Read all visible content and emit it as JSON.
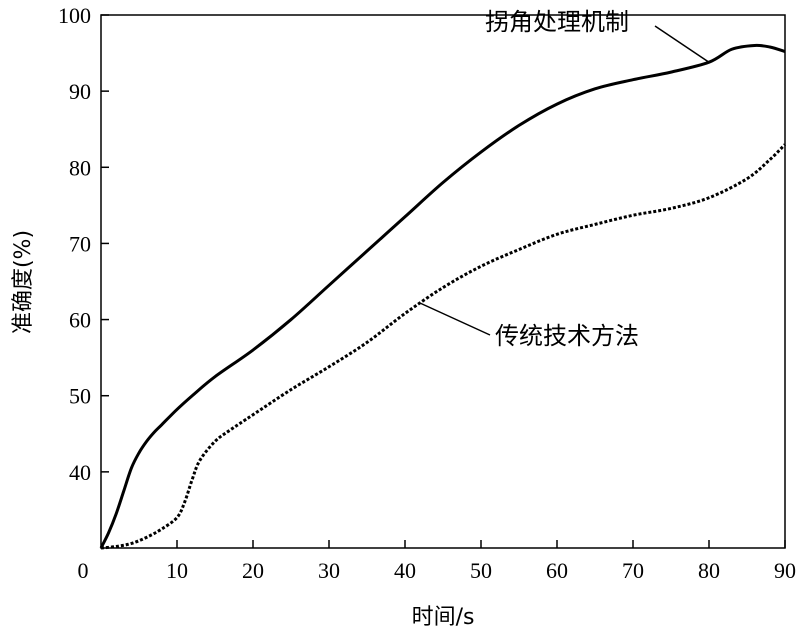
{
  "chart_data": {
    "type": "line",
    "xlabel": "时间/s",
    "ylabel": "准确度(%)",
    "xlim": [
      0,
      90
    ],
    "ylim": [
      30,
      100
    ],
    "origin_label": "0",
    "xticks": [
      10,
      20,
      30,
      40,
      50,
      60,
      70,
      80,
      90
    ],
    "yticks": [
      40,
      50,
      60,
      70,
      80,
      90,
      100
    ],
    "grid": false,
    "legend": "none",
    "series": [
      {
        "name": "拐角处理机制",
        "style": "solid",
        "color": "#000000",
        "x": [
          0,
          1,
          2,
          3,
          4,
          5,
          6,
          7,
          8,
          10,
          12,
          15,
          20,
          25,
          30,
          35,
          40,
          45,
          50,
          55,
          60,
          65,
          70,
          75,
          80,
          83,
          86,
          88,
          90
        ],
        "y": [
          30,
          32,
          34.5,
          37.5,
          40.5,
          42.5,
          44,
          45.2,
          46.2,
          48.2,
          50,
          52.5,
          56,
          60,
          64.5,
          69,
          73.5,
          78,
          82,
          85.5,
          88.3,
          90.3,
          91.5,
          92.5,
          93.8,
          95.5,
          96,
          95.8,
          95.2
        ]
      },
      {
        "name": "传统技术方法",
        "style": "dotted",
        "color": "#000000",
        "x": [
          0,
          2,
          4,
          6,
          8,
          10,
          11,
          12,
          13,
          15,
          17,
          20,
          25,
          30,
          35,
          40,
          45,
          50,
          55,
          60,
          65,
          70,
          75,
          80,
          85,
          88,
          90
        ],
        "y": [
          30,
          30.2,
          30.6,
          31.4,
          32.5,
          34,
          36,
          39,
          41.5,
          44,
          45.5,
          47.5,
          50.8,
          53.8,
          57,
          60.8,
          64.2,
          67,
          69.2,
          71.2,
          72.5,
          73.7,
          74.6,
          76,
          78.5,
          81,
          83
        ]
      }
    ],
    "annotations": [
      {
        "text": "拐角处理机制",
        "series": 0
      },
      {
        "text": "传统技术方法",
        "series": 1
      }
    ]
  }
}
